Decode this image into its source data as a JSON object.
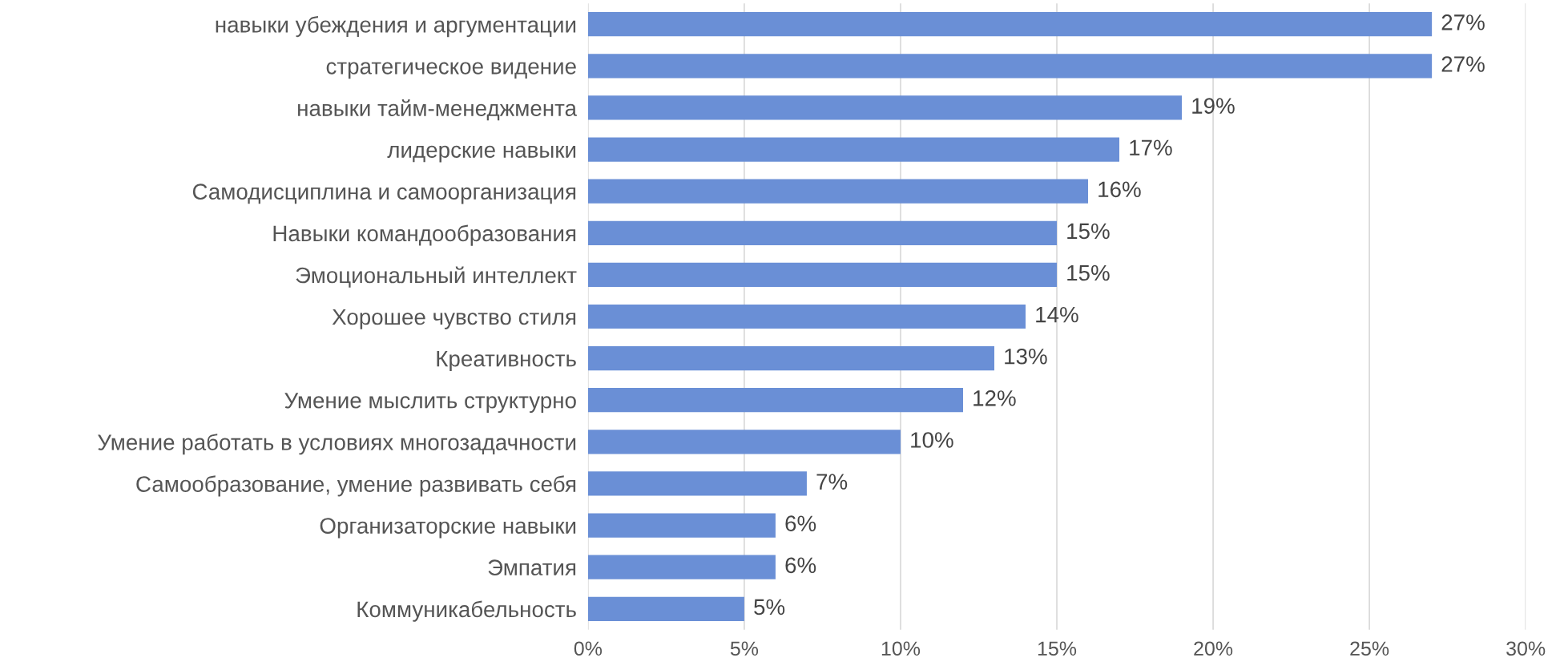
{
  "chart_data": {
    "type": "bar",
    "orientation": "horizontal",
    "categories": [
      "навыки убеждения и аргументации",
      "стратегическое видение",
      "навыки тайм-менеджмента",
      "лидерские навыки",
      "Самодисциплина и самоорганизация",
      "Навыки командообразования",
      "Эмоциональный интеллект",
      "Хорошее чувство стиля",
      "Креативность",
      "Умение мыслить структурно",
      "Умение работать в условиях многозадачности",
      "Самообразование, умение развивать себя",
      "Организаторские навыки",
      "Эмпатия",
      "Коммуникабельность"
    ],
    "values": [
      27,
      27,
      19,
      17,
      16,
      15,
      15,
      14,
      13,
      12,
      10,
      7,
      6,
      6,
      5
    ],
    "value_labels": [
      "27%",
      "27%",
      "19%",
      "17%",
      "16%",
      "15%",
      "15%",
      "14%",
      "13%",
      "12%",
      "10%",
      "7%",
      "6%",
      "6%",
      "5%"
    ],
    "color": "#6a8fd6",
    "xlim": [
      0,
      30
    ],
    "xticks": [
      {
        "value": 0,
        "label": "0%"
      },
      {
        "value": 5,
        "label": "5%"
      },
      {
        "value": 10,
        "label": "10%"
      },
      {
        "value": 15,
        "label": "15%"
      },
      {
        "value": 20,
        "label": "20%"
      },
      {
        "value": 25,
        "label": "25%"
      },
      {
        "value": 30,
        "label": "30%"
      }
    ],
    "grid": "x"
  }
}
